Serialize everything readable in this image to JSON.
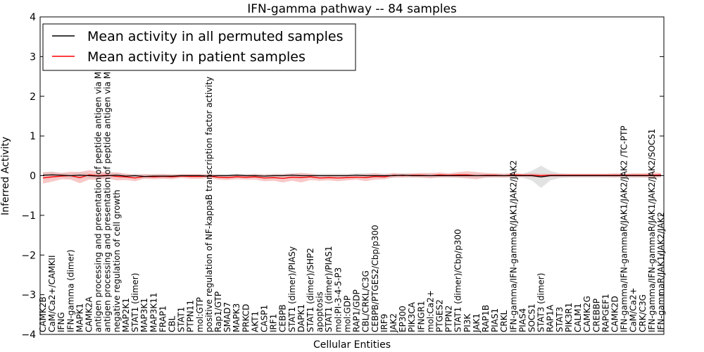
{
  "chart_data": {
    "type": "line",
    "title": "IFN-gamma pathway -- 84 samples",
    "xlabel": "Cellular Entities",
    "ylabel": "Inferred Activity",
    "ylim": [
      -4,
      4
    ],
    "yticks": [
      -4,
      -3,
      -2,
      -1,
      0,
      1,
      2,
      3,
      4
    ],
    "ytick_labels": [
      "−4",
      "−3",
      "−2",
      "−1",
      "0",
      "1",
      "2",
      "3",
      "4"
    ],
    "legend_position": "top-left",
    "categories": [
      "CAMK2B",
      "CaM/Ca2+/CAMKII",
      "IFNG",
      "IFN-gamma (dimer)",
      "MAPK1",
      "CAMK2A",
      "antigen processing and presentation of peptide antigen via MHC class I",
      "antigen processing and presentation of peptide antigen via MHC class II",
      "negative regulation of cell growth",
      "MAP2K1",
      "STAT1 (dimer)",
      "MAP3K1",
      "MAP3K11",
      "FRAP1",
      "CBL",
      "STAT1",
      "PTPN11",
      "mol:GTP",
      "positive regulation of NF-kappaB transcription factor activity",
      "Rap1/GTP",
      "SMAD7",
      "MAPK3",
      "PRKCD",
      "AKT1",
      "CASP1",
      "IRF1",
      "CEBPB",
      "STAT1 (dimer)/PIASy",
      "DAPK1",
      "STAT1 (dimer)/SHP2",
      "apoptosis",
      "STAT1 (dimer)/PIAS1",
      "mol:PI-3-4-5-P3",
      "mol:GDP",
      "RAP1/GDP",
      "CBL/CRKL/C3G",
      "CEBPB/PTGES2/Cbp/p300",
      "IRF9",
      "JAK2",
      "EP300",
      "PIK3CA",
      "IFNGR1",
      "mol:Ca2+",
      "PTGES2",
      "PTPN2",
      "STAT1 (dimer)/Cbp/p300",
      "PI3K",
      "JAK1",
      "RAP1B",
      "PIAS1",
      "CRKL",
      "IFN-gamma/IFN-gammaR/JAK1/JAK2/JAK2",
      "PIAS4",
      "SOCS1",
      "STAT3 (dimer)",
      "RAP1A",
      "STAT3",
      "PIK3R1",
      "CALM1",
      "CAMK2G",
      "CREBBP",
      "RAPGEF1",
      "CAMK2D",
      "IFN-gamma/IFN-gammaR/JAK1/JAK2/JAK2  /TC-PTP",
      "CaM/Ca2+",
      "CRK/C3G",
      "IFN-gamma/IFN-gammaR/JAK1/JAK2/JAK2/SOCS1",
      "IFN-gammaR/JAK1/JAK2/JAK2"
    ],
    "series": [
      {
        "name": "Mean activity in all permuted samples",
        "color": "#000000",
        "band_color": "#cfcfcf",
        "values": [
          0.01,
          0.02,
          0.01,
          0.0,
          0.01,
          0.0,
          -0.01,
          0.0,
          0.01,
          -0.01,
          0.0,
          -0.02,
          -0.01,
          -0.01,
          -0.01,
          0.0,
          0.0,
          0.0,
          -0.01,
          0.0,
          0.0,
          0.01,
          0.0,
          0.0,
          -0.01,
          0.0,
          0.0,
          0.01,
          0.0,
          0.0,
          0.0,
          0.0,
          0.0,
          0.0,
          0.01,
          0.0,
          0.0,
          0.0,
          0.0,
          0.01,
          0.0,
          0.0,
          0.0,
          0.0,
          0.0,
          0.0,
          0.0,
          0.0,
          0.0,
          0.0,
          0.0,
          0.0,
          0.0,
          0.0,
          -0.03,
          0.0,
          0.0,
          0.0,
          0.0,
          0.0,
          0.0,
          0.0,
          0.0,
          0.0,
          0.0,
          0.0,
          0.0,
          0.0
        ],
        "band": [
          0.08,
          0.08,
          0.06,
          0.06,
          0.08,
          0.06,
          0.06,
          0.06,
          0.06,
          0.05,
          0.05,
          0.05,
          0.05,
          0.05,
          0.04,
          0.04,
          0.04,
          0.04,
          0.04,
          0.04,
          0.04,
          0.04,
          0.04,
          0.05,
          0.05,
          0.05,
          0.05,
          0.05,
          0.05,
          0.05,
          0.05,
          0.05,
          0.05,
          0.05,
          0.05,
          0.06,
          0.06,
          0.05,
          0.05,
          0.05,
          0.05,
          0.05,
          0.05,
          0.05,
          0.05,
          0.05,
          0.05,
          0.05,
          0.05,
          0.05,
          0.05,
          0.05,
          0.05,
          0.12,
          0.28,
          0.12,
          0.06,
          0.05,
          0.05,
          0.05,
          0.05,
          0.05,
          0.05,
          0.05,
          0.05,
          0.05,
          0.05,
          0.05
        ]
      },
      {
        "name": "Mean activity in patient samples",
        "color": "#ff0000",
        "band_color": "#f29b9b",
        "values": [
          -0.06,
          -0.03,
          -0.01,
          0.0,
          -0.05,
          0.02,
          0.0,
          0.01,
          -0.02,
          -0.03,
          -0.06,
          -0.02,
          -0.03,
          -0.02,
          -0.03,
          -0.01,
          -0.02,
          -0.02,
          -0.01,
          -0.04,
          -0.05,
          -0.03,
          -0.04,
          -0.03,
          -0.06,
          -0.05,
          -0.07,
          -0.04,
          -0.05,
          -0.03,
          -0.06,
          -0.05,
          -0.06,
          -0.05,
          -0.04,
          -0.05,
          -0.02,
          -0.03,
          0.01,
          0.0,
          0.01,
          0.01,
          0.0,
          0.02,
          0.01,
          0.02,
          0.02,
          0.0,
          0.01,
          0.01,
          0.0,
          0.02,
          0.01,
          0.01,
          0.0,
          0.01,
          0.01,
          0.01,
          0.01,
          0.01,
          0.01,
          0.01,
          0.01,
          0.01,
          0.01,
          0.01,
          0.01,
          0.02
        ],
        "band": [
          0.14,
          0.12,
          0.08,
          0.1,
          0.14,
          0.12,
          0.1,
          0.08,
          0.1,
          0.08,
          0.08,
          0.06,
          0.06,
          0.06,
          0.06,
          0.05,
          0.06,
          0.06,
          0.05,
          0.06,
          0.06,
          0.06,
          0.06,
          0.07,
          0.08,
          0.08,
          0.1,
          0.09,
          0.12,
          0.08,
          0.07,
          0.07,
          0.08,
          0.07,
          0.06,
          0.09,
          0.08,
          0.06,
          0.06,
          0.05,
          0.05,
          0.06,
          0.07,
          0.06,
          0.05,
          0.07,
          0.09,
          0.09,
          0.06,
          0.05,
          0.05,
          0.05,
          0.04,
          0.05,
          0.05,
          0.04,
          0.04,
          0.04,
          0.04,
          0.04,
          0.04,
          0.04,
          0.05,
          0.04,
          0.05,
          0.05,
          0.07,
          0.05
        ]
      }
    ]
  }
}
